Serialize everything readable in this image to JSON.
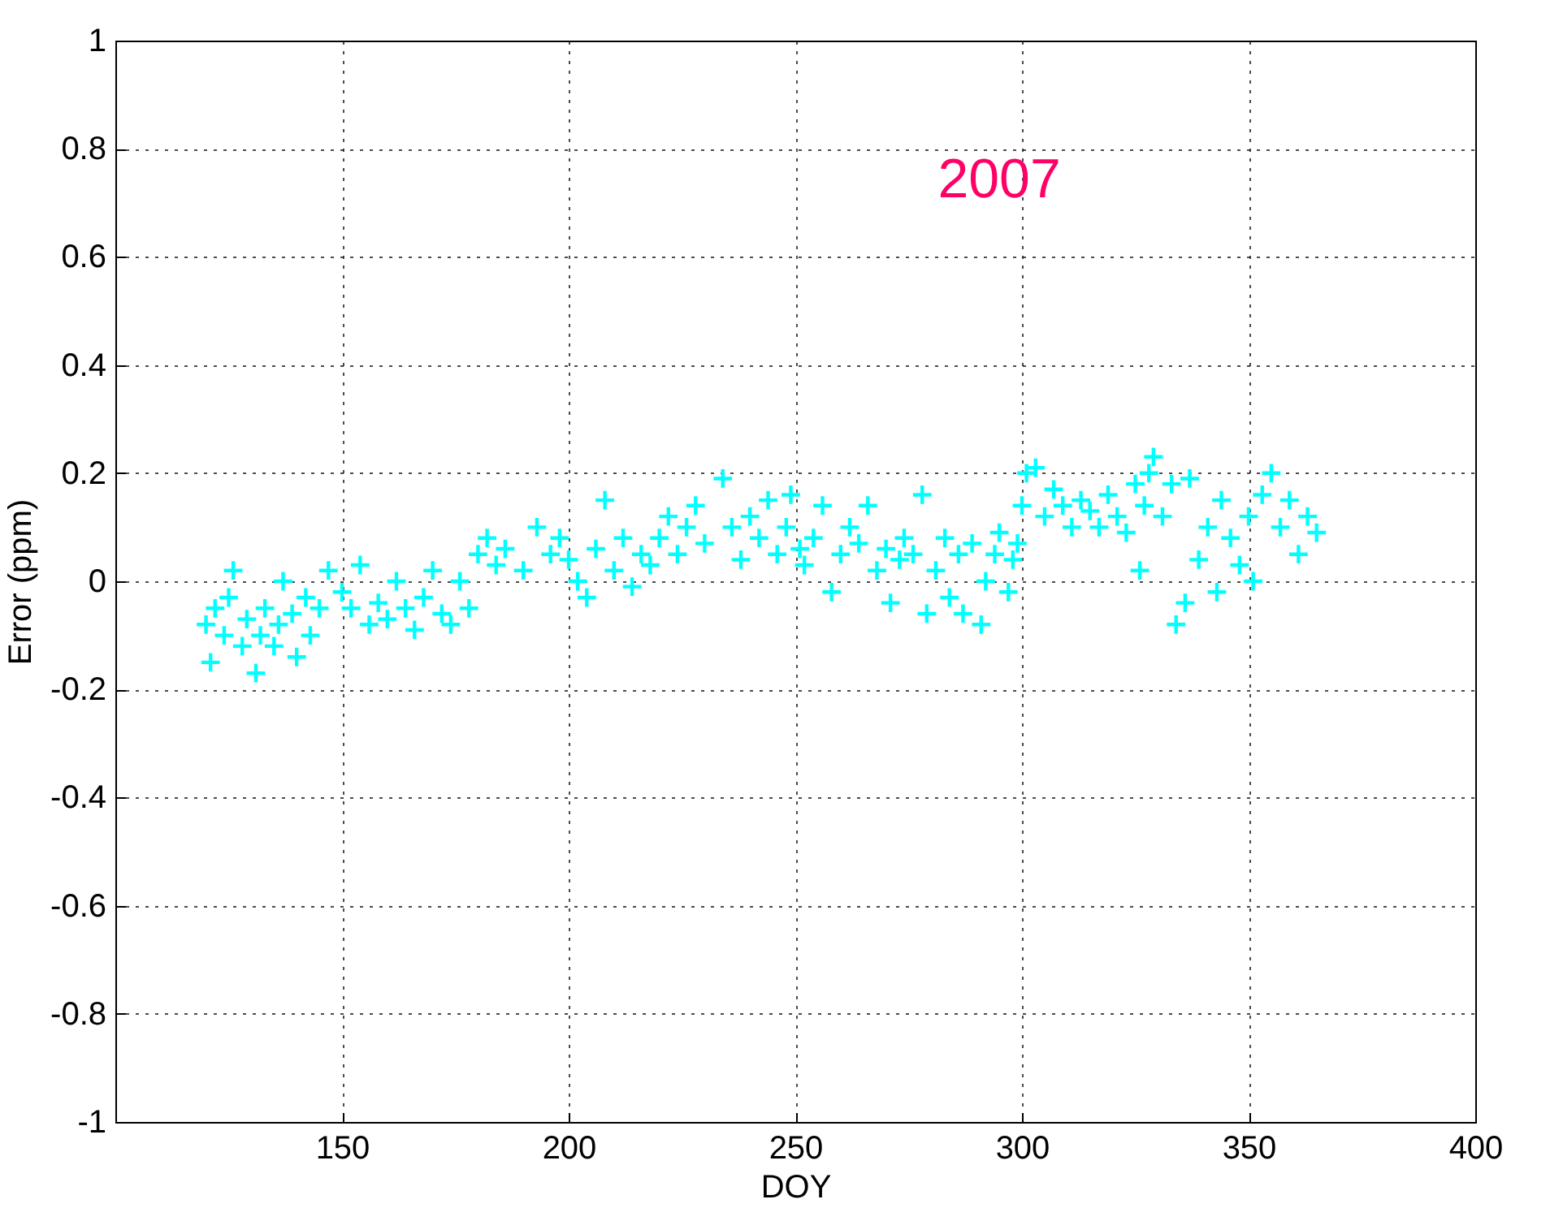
{
  "chart_data": {
    "type": "scatter",
    "xlabel": "DOY",
    "ylabel": "Error (ppm)",
    "annotations": [
      "2007"
    ],
    "xlim": [
      100,
      400
    ],
    "xticks": [
      150,
      200,
      250,
      300,
      350,
      400
    ],
    "ylim": [
      -1,
      1
    ],
    "yticks": [
      -1,
      -0.8,
      -0.6,
      -0.4,
      -0.2,
      0,
      0.2,
      0.4,
      0.6,
      0.8,
      1
    ],
    "grid": true,
    "marker": "cross",
    "series": [
      {
        "color": "#00ffff",
        "x": [
          120,
          121,
          122,
          124,
          125,
          126,
          128,
          129,
          131,
          132,
          133,
          135,
          136,
          137,
          139,
          140,
          142,
          143,
          145,
          147,
          150,
          152,
          154,
          156,
          158,
          160,
          162,
          164,
          166,
          168,
          170,
          172,
          174,
          176,
          178,
          180,
          182,
          184,
          186,
          190,
          193,
          196,
          198,
          200,
          202,
          204,
          206,
          208,
          210,
          212,
          214,
          216,
          218,
          220,
          222,
          224,
          226,
          228,
          230,
          234,
          236,
          238,
          240,
          242,
          244,
          246,
          248,
          249,
          251,
          252,
          254,
          256,
          258,
          260,
          262,
          264,
          266,
          268,
          270,
          271,
          273,
          274,
          276,
          278,
          279,
          281,
          283,
          284,
          286,
          287,
          289,
          291,
          292,
          294,
          295,
          297,
          298,
          299,
          300,
          301,
          303,
          305,
          307,
          309,
          311,
          313,
          315,
          317,
          319,
          321,
          323,
          325,
          326,
          327,
          328,
          329,
          331,
          333,
          334,
          336,
          337,
          339,
          341,
          343,
          344,
          346,
          348,
          350,
          351,
          353,
          355,
          357,
          359,
          361,
          363,
          365
        ],
        "values": [
          -0.08,
          -0.15,
          -0.05,
          -0.1,
          -0.03,
          0.02,
          -0.12,
          -0.07,
          -0.17,
          -0.1,
          -0.05,
          -0.12,
          -0.08,
          0.0,
          -0.06,
          -0.14,
          -0.03,
          -0.1,
          -0.05,
          0.02,
          -0.02,
          -0.05,
          0.03,
          -0.08,
          -0.04,
          -0.07,
          0.0,
          -0.05,
          -0.09,
          -0.03,
          0.02,
          -0.06,
          -0.08,
          0.0,
          -0.05,
          0.05,
          0.08,
          0.03,
          0.06,
          0.02,
          0.1,
          0.05,
          0.08,
          0.04,
          0.0,
          -0.03,
          0.06,
          0.15,
          0.02,
          0.08,
          -0.01,
          0.05,
          0.03,
          0.08,
          0.12,
          0.05,
          0.1,
          0.14,
          0.07,
          0.19,
          0.1,
          0.04,
          0.12,
          0.08,
          0.15,
          0.05,
          0.1,
          0.16,
          0.06,
          0.03,
          0.08,
          0.14,
          -0.02,
          0.05,
          0.1,
          0.07,
          0.14,
          0.02,
          0.06,
          -0.04,
          0.04,
          0.08,
          0.05,
          0.16,
          -0.06,
          0.02,
          0.08,
          -0.03,
          0.05,
          -0.06,
          0.07,
          -0.08,
          0.0,
          0.05,
          0.09,
          -0.02,
          0.04,
          0.07,
          0.14,
          0.2,
          0.21,
          0.12,
          0.17,
          0.14,
          0.1,
          0.15,
          0.13,
          0.1,
          0.16,
          0.12,
          0.09,
          0.18,
          0.02,
          0.14,
          0.2,
          0.23,
          0.12,
          0.18,
          -0.08,
          -0.04,
          0.19,
          0.04,
          0.1,
          -0.02,
          0.15,
          0.08,
          0.03,
          0.12,
          0.0,
          0.16,
          0.2,
          0.1,
          0.15,
          0.05,
          0.12,
          0.09
        ]
      }
    ]
  }
}
